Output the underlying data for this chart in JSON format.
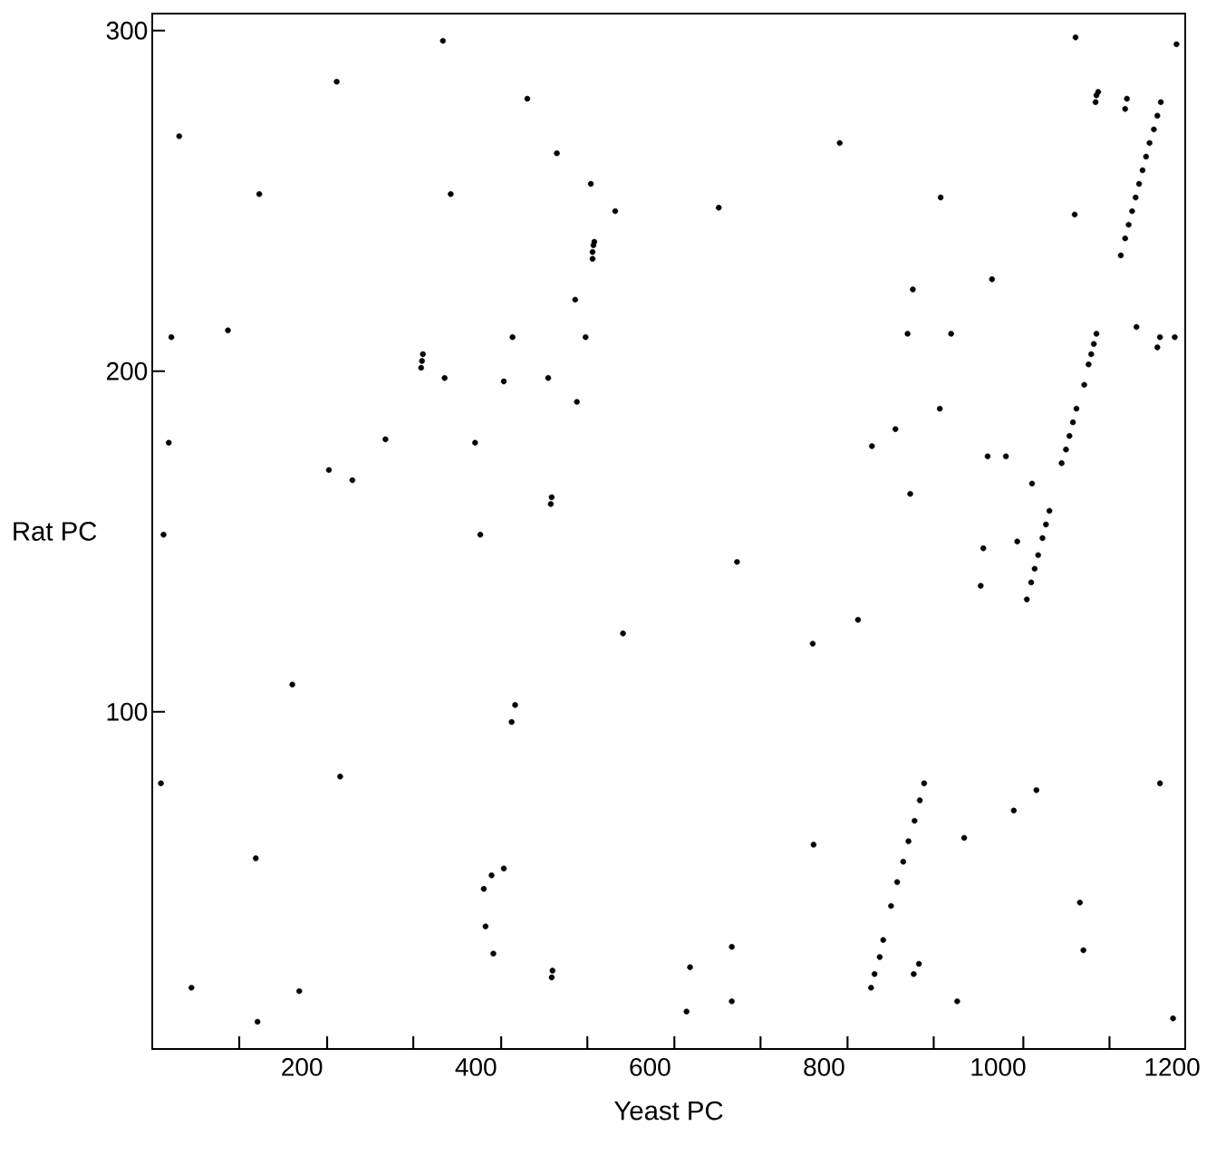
{
  "chart_data": {
    "type": "scatter",
    "xlabel": "Yeast PC",
    "ylabel": "Rat PC",
    "xlim": [
      28,
      1215
    ],
    "ylim": [
      1,
      305
    ],
    "xticks": [
      {
        "value": 128,
        "label": null
      },
      200,
      {
        "value": 229,
        "label": null
      },
      {
        "value": 328,
        "label": null
      },
      400,
      {
        "value": 429,
        "label": null
      },
      {
        "value": 528,
        "label": null
      },
      600,
      {
        "value": 628,
        "label": null
      },
      {
        "value": 727,
        "label": null
      },
      800,
      {
        "value": 827,
        "label": null
      },
      {
        "value": 926,
        "label": null
      },
      1000,
      {
        "value": 1029,
        "label": null
      },
      {
        "value": 1128,
        "label": null
      },
      1200
    ],
    "yticks": [
      100,
      200,
      300
    ],
    "marker": "circle",
    "series": [
      {
        "color": "#000000",
        "x": [
          362,
          240,
          459,
          59,
          151,
          371,
          493,
          532,
          560,
          536,
          535,
          534,
          534,
          514,
          50,
          115,
          442,
          526,
          339,
          338,
          337,
          364,
          483,
          432,
          516,
          47,
          296,
          399,
          231,
          258,
          487,
          486,
          41,
          405,
          1089,
          1205,
          1115,
          1113,
          1112,
          1148,
          1146,
          1187,
          1183,
          1179,
          1174,
          1170,
          1166,
          1162,
          1158,
          1154,
          1150,
          1146,
          1141,
          818,
          934,
          1088,
          679,
          993,
          902,
          896,
          946,
          1159,
          1186,
          1183,
          1203,
          1113,
          1110,
          1107,
          1104,
          1099,
          933,
          882,
          855,
          1090,
          1086,
          1082,
          1078,
          1073,
          988,
          1009,
          1039,
          899,
          1059,
          1055,
          1051,
          1046,
          1042,
          1038,
          1033,
          1022,
          983,
          980,
          700,
          839,
          787,
          1044,
          1186,
          1018,
          961,
          788,
          915,
          910,
          904,
          897,
          891,
          884,
          877,
          1094,
          694,
          646,
          868,
          864,
          858,
          854,
          909,
          903,
          1098,
          694,
          953,
          1201,
          642,
          569,
          189,
          445,
          441,
          244,
          38,
          147,
          432,
          418,
          409,
          411,
          420,
          488,
          487,
          73,
          197,
          149
        ],
        "values": [
          297,
          285,
          280,
          269,
          252,
          252,
          264,
          255,
          247,
          238,
          237,
          235,
          233,
          221,
          210,
          212,
          210,
          210,
          205,
          203,
          201,
          198,
          198,
          197,
          191,
          179,
          180,
          179,
          171,
          168,
          163,
          161,
          152,
          152,
          298,
          296,
          282,
          281,
          279,
          280,
          277,
          279,
          275,
          271,
          267,
          263,
          259,
          255,
          251,
          247,
          243,
          239,
          234,
          267,
          251,
          246,
          248,
          227,
          224,
          211,
          211,
          213,
          210,
          207,
          210,
          211,
          208,
          205,
          202,
          196,
          189,
          183,
          178,
          189,
          185,
          181,
          177,
          173,
          175,
          175,
          167,
          164,
          159,
          155,
          151,
          146,
          142,
          138,
          133,
          150,
          148,
          137,
          144,
          127,
          120,
          77,
          79,
          71,
          63,
          61,
          79,
          74,
          68,
          62,
          56,
          50,
          43,
          44,
          31,
          25,
          33,
          28,
          23,
          19,
          26,
          23,
          30,
          15,
          15,
          10,
          12,
          123,
          108,
          102,
          97,
          81,
          79,
          57,
          54,
          52,
          48,
          37,
          29,
          24,
          22,
          19,
          18,
          9
        ]
      }
    ]
  }
}
